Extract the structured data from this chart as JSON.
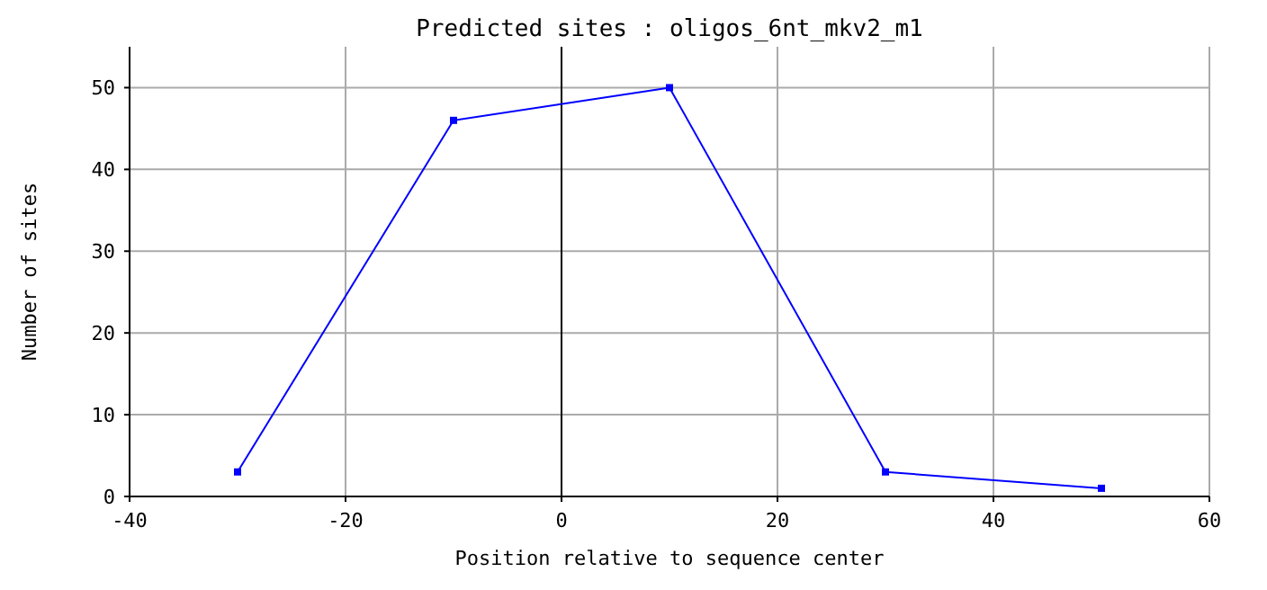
{
  "chart_data": {
    "type": "line",
    "title": "Predicted sites : oligos_6nt_mkv2_m1",
    "xlabel": "Position relative to sequence center",
    "ylabel": "Number of sites",
    "x": [
      -30,
      -10,
      10,
      30,
      50
    ],
    "series": [
      {
        "color": "#0000ff",
        "values": [
          3,
          46,
          50,
          3,
          1
        ]
      }
    ],
    "xlim": [
      -40,
      60
    ],
    "xticks": [
      -40,
      -20,
      0,
      20,
      40,
      60
    ],
    "ylim": [
      0,
      55
    ],
    "yticks": [
      0,
      10,
      20,
      30,
      40,
      50
    ],
    "grid": true,
    "marker": "square",
    "ref_lines": [
      {
        "axis": "x",
        "value": 0,
        "color": "#000000"
      }
    ]
  }
}
